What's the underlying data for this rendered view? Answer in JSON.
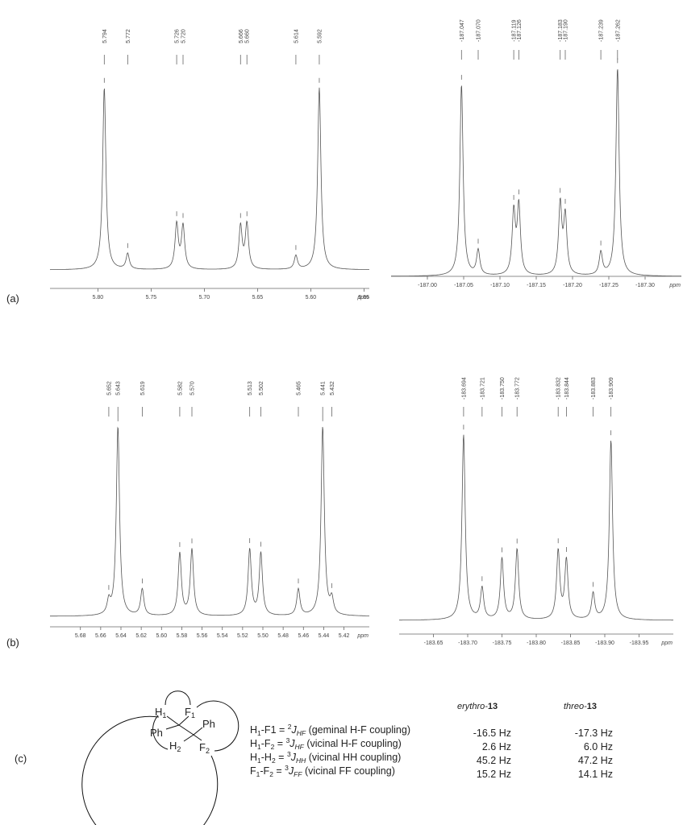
{
  "chart_data": [
    {
      "type": "spectrum",
      "x": [
        5.794,
        5.772,
        5.726,
        5.72,
        5.666,
        5.66,
        5.614,
        5.592
      ],
      "value_labels": [
        "5.794",
        "5.772",
        "5.726",
        "5.720",
        "5.666",
        "5.660",
        "5.614",
        "5.592"
      ],
      "values": [
        0.93,
        0.08,
        0.23,
        0.22,
        0.22,
        0.23,
        0.07,
        0.93
      ],
      "ylim": [
        0,
        1
      ],
      "xlim": [
        5.845,
        5.545
      ],
      "x_label": "ppm",
      "xticks": [
        {
          "value": 5.8,
          "label": "5.80"
        },
        5.75,
        {
          "value": 5.7,
          "label": "5.70"
        },
        5.65,
        {
          "value": 5.6,
          "label": "5.60"
        },
        5.55
      ]
    },
    {
      "type": "spectrum",
      "x": [
        -187.047,
        -187.07,
        -187.119,
        -187.126,
        -187.183,
        -187.19,
        -187.239,
        -187.262
      ],
      "value_labels": [
        "-187.047",
        "-187.070",
        "-187.119",
        "-187.126",
        "-187.183",
        "-187.190",
        "-187.239",
        "-187.262"
      ],
      "values": [
        0.92,
        0.12,
        0.3,
        0.33,
        0.34,
        0.28,
        0.11,
        1.0
      ],
      "ylim": [
        0,
        1
      ],
      "xlim": [
        -186.95,
        -187.35
      ],
      "x_label": "ppm",
      "xticks": [
        {
          "value": -187.0,
          "label": "-187.00"
        },
        -187.05,
        {
          "value": -187.1,
          "label": "-187.10"
        },
        -187.15,
        {
          "value": -187.2,
          "label": "-187.20"
        },
        -187.25,
        {
          "value": -187.3,
          "label": "-187.30"
        }
      ]
    },
    {
      "type": "spectrum",
      "x": [
        5.652,
        5.643,
        5.619,
        5.582,
        5.57,
        5.513,
        5.502,
        5.465,
        5.441,
        5.432
      ],
      "value_labels": [
        "5.652",
        "5.643",
        "5.619",
        "5.582",
        "5.570",
        "5.513",
        "5.502",
        "5.465",
        "5.441",
        "5.432"
      ],
      "values": [
        0.07,
        1.0,
        0.14,
        0.33,
        0.35,
        0.35,
        0.33,
        0.14,
        1.0,
        0.08
      ],
      "ylim": [
        0,
        1
      ],
      "xlim": [
        5.71,
        5.395
      ],
      "x_label": "ppm",
      "xticks": [
        5.68,
        5.66,
        5.64,
        5.62,
        {
          "value": 5.6,
          "label": "5.60"
        },
        5.58,
        5.56,
        5.54,
        5.52,
        {
          "value": 5.5,
          "label": "5.50"
        },
        5.48,
        5.46,
        5.44,
        5.42
      ]
    },
    {
      "type": "spectrum",
      "x": [
        -183.694,
        -183.721,
        -183.75,
        -183.772,
        -183.832,
        -183.844,
        -183.883,
        -183.909
      ],
      "value_labels": [
        "-183.694",
        "-183.721",
        "-183.750",
        "-183.772",
        "-183.832",
        "-183.844",
        "-183.883",
        "-183.909"
      ],
      "values": [
        1.0,
        0.17,
        0.33,
        0.38,
        0.37,
        0.32,
        0.14,
        0.97
      ],
      "ylim": [
        0,
        1
      ],
      "xlim": [
        -183.6,
        -184.0
      ],
      "x_label": "ppm",
      "xticks": [
        -183.65,
        {
          "value": -183.7,
          "label": "-183.70"
        },
        -183.75,
        {
          "value": -183.8,
          "label": "-183.80"
        },
        -183.85,
        {
          "value": -183.9,
          "label": "-183.90"
        },
        -183.95
      ]
    }
  ],
  "panel_labels": [
    "(a)",
    "(b)",
    "(c)"
  ],
  "structure": {
    "atoms": [
      {
        "symbol": "H",
        "index": "1"
      },
      {
        "symbol": "F",
        "index": "1"
      },
      {
        "symbol": "Ph"
      },
      {
        "symbol": "Ph"
      },
      {
        "symbol": "H",
        "index": "2"
      },
      {
        "symbol": "F",
        "index": "2"
      }
    ]
  },
  "coupling_table": {
    "columns": [
      {
        "name": "erythro-",
        "compound": "13"
      },
      {
        "name": "threo-",
        "compound": "13"
      }
    ],
    "rows": [
      {
        "coupling": [
          "H",
          "1",
          "-F1 = ",
          "2",
          "J",
          "HF",
          " (geminal H-F coupling)"
        ],
        "values": [
          "-16.5 Hz",
          "-17.3 Hz"
        ]
      },
      {
        "coupling": [
          "H",
          "1",
          "-F",
          "2",
          " = ",
          "3",
          "J",
          "HF",
          " (vicinal H-F coupling)"
        ],
        "values": [
          "2.6 Hz",
          "6.0 Hz"
        ]
      },
      {
        "coupling": [
          "H",
          "1",
          "-H",
          "2",
          " = ",
          "3",
          "J",
          "HH",
          " (vicinal HH coupling)"
        ],
        "values": [
          "45.2 Hz",
          "47.2 Hz"
        ]
      },
      {
        "coupling": [
          "F",
          "1",
          "-F",
          "2",
          " = ",
          "3",
          "J",
          "FF",
          " (vicinal FF coupling)"
        ],
        "values": [
          "15.2 Hz",
          "14.1 Hz"
        ]
      }
    ]
  }
}
